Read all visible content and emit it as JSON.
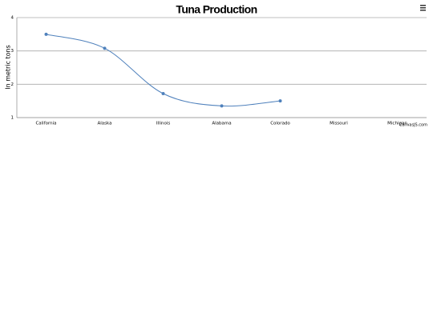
{
  "chart_data": {
    "type": "spline",
    "title": "Tuna Production",
    "y_label": "In metric tons",
    "categories": [
      "California",
      "Alaska",
      "Illinois",
      "Alabama",
      "Colorado",
      "Missouri",
      "Michigan"
    ],
    "series": [
      {
        "name": "Tuna",
        "color": "#4f81bc",
        "values": [
          3.5,
          3.08,
          1.72,
          1.35,
          1.5,
          null,
          null
        ]
      }
    ],
    "ylim": [
      1,
      4
    ],
    "yticks": [
      1,
      2,
      3,
      4
    ],
    "grid": true,
    "credit": "CanvasJS.com"
  }
}
